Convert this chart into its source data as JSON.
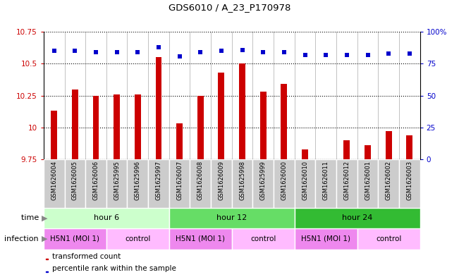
{
  "title": "GDS6010 / A_23_P170978",
  "samples": [
    "GSM1626004",
    "GSM1626005",
    "GSM1626006",
    "GSM1625995",
    "GSM1625996",
    "GSM1625997",
    "GSM1626007",
    "GSM1626008",
    "GSM1626009",
    "GSM1625998",
    "GSM1625999",
    "GSM1626000",
    "GSM1626010",
    "GSM1626011",
    "GSM1626012",
    "GSM1626001",
    "GSM1626002",
    "GSM1626003"
  ],
  "red_values": [
    10.13,
    10.3,
    10.25,
    10.26,
    10.26,
    10.55,
    10.03,
    10.25,
    10.43,
    10.5,
    10.28,
    10.34,
    9.83,
    9.75,
    9.9,
    9.86,
    9.97,
    9.94
  ],
  "blue_values": [
    85,
    85,
    84,
    84,
    84,
    88,
    81,
    84,
    85,
    86,
    84,
    84,
    82,
    82,
    82,
    82,
    83,
    83
  ],
  "ylim_left": [
    9.75,
    10.75
  ],
  "ylim_right": [
    0,
    100
  ],
  "yticks_left": [
    9.75,
    10.0,
    10.25,
    10.5,
    10.75
  ],
  "ytick_labels_left": [
    "9.75",
    "10",
    "10.25",
    "10.5",
    "10.75"
  ],
  "yticks_right": [
    0,
    25,
    50,
    75,
    100
  ],
  "ytick_labels_right": [
    "0",
    "25",
    "50",
    "75",
    "100%"
  ],
  "time_groups": [
    {
      "label": "hour 6",
      "start": 0,
      "end": 6,
      "color": "#ccffcc"
    },
    {
      "label": "hour 12",
      "start": 6,
      "end": 12,
      "color": "#66dd66"
    },
    {
      "label": "hour 24",
      "start": 12,
      "end": 18,
      "color": "#33bb33"
    }
  ],
  "infection_groups": [
    {
      "label": "H5N1 (MOI 1)",
      "start": 0,
      "end": 3,
      "color": "#ee88ee"
    },
    {
      "label": "control",
      "start": 3,
      "end": 6,
      "color": "#ffbbff"
    },
    {
      "label": "H5N1 (MOI 1)",
      "start": 6,
      "end": 9,
      "color": "#ee88ee"
    },
    {
      "label": "control",
      "start": 9,
      "end": 12,
      "color": "#ffbbff"
    },
    {
      "label": "H5N1 (MOI 1)",
      "start": 12,
      "end": 15,
      "color": "#ee88ee"
    },
    {
      "label": "control",
      "start": 15,
      "end": 18,
      "color": "#ffbbff"
    }
  ],
  "bar_color": "#cc0000",
  "dot_color": "#0000cc",
  "sample_box_color": "#cccccc",
  "background_color": "#ffffff"
}
